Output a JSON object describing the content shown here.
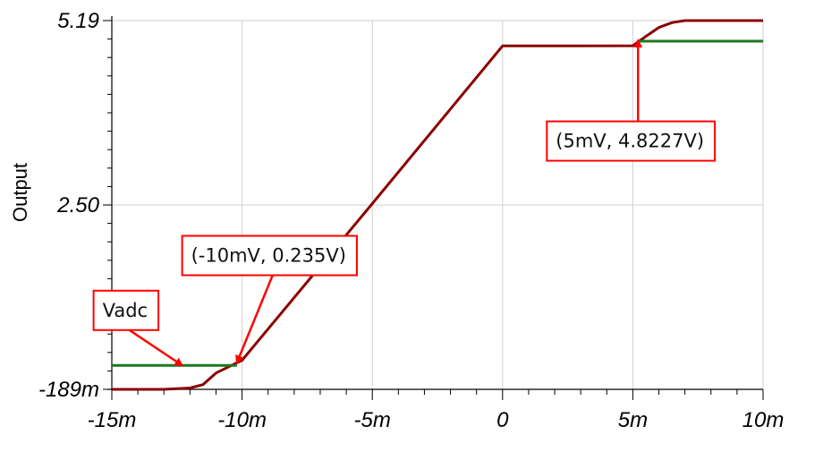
{
  "chart_data": {
    "type": "line",
    "ylabel": "Output",
    "xlim": [
      -15,
      10
    ],
    "ylim": [
      -0.189,
      5.19
    ],
    "x_unit": "m",
    "x_ticks": [
      {
        "value": -15,
        "label": "-15m"
      },
      {
        "value": -10,
        "label": "-10m"
      },
      {
        "value": -5,
        "label": "-5m"
      },
      {
        "value": 0,
        "label": "0"
      },
      {
        "value": 5,
        "label": "5m"
      },
      {
        "value": 10,
        "label": "10m"
      }
    ],
    "y_ticks": [
      {
        "value": -0.189,
        "label": "-189m"
      },
      {
        "value": 2.5,
        "label": "2.50"
      },
      {
        "value": 5.19,
        "label": "5.19"
      }
    ],
    "grid": true,
    "series": [
      {
        "name": "Output",
        "color": "#8b0000",
        "x": [
          -15,
          -13,
          -12,
          -11.5,
          -11,
          -10,
          -5,
          0,
          5,
          5.5,
          6,
          6.5,
          7,
          10
        ],
        "y": [
          -0.189,
          -0.189,
          -0.17,
          -0.12,
          0.05,
          0.235,
          2.52,
          4.82,
          4.8227,
          4.96,
          5.09,
          5.16,
          5.19,
          5.19
        ]
      },
      {
        "name": "Vadc",
        "color": "#1a7a1a",
        "x": [
          -15,
          -10.2,
          -10.2,
          5.2,
          5.2,
          10
        ],
        "y": [
          0.16,
          0.16,
          null,
          null,
          4.89,
          4.89
        ]
      }
    ],
    "annotations": [
      {
        "label": "Vadc",
        "box_x": -15.7,
        "box_y": 1.25,
        "arrow_to_x": -12.3,
        "arrow_to_y": 0.16
      },
      {
        "label": "(-10mV, 0.235V)",
        "box_x": -12.3,
        "box_y": 2.05,
        "arrow_to_x": -10.2,
        "arrow_to_y": 0.2
      },
      {
        "label": "(5mV, 4.8227V)",
        "box_x": 1.7,
        "box_y": 3.72,
        "arrow_to_x": 5.2,
        "arrow_to_y": 4.9
      }
    ]
  }
}
